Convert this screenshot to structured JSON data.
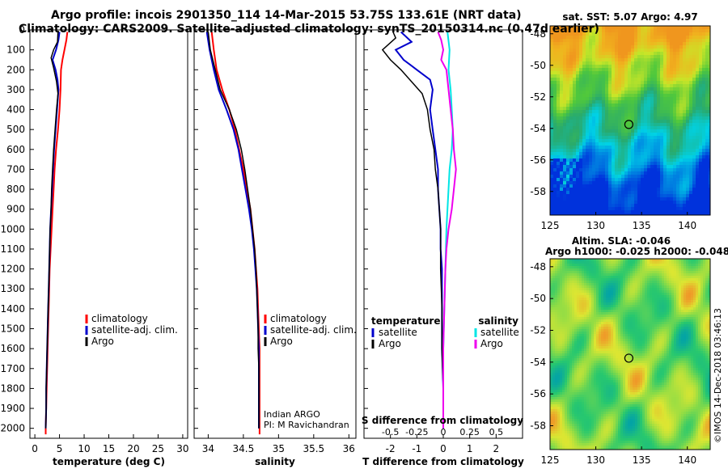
{
  "title_line1": "Argo profile: incois 2901350_114 14-Mar-2015 53.75S 133.61E (NRT data)",
  "title_line2": "Climatology: CARS2009. Satellite-adjusted climatology: synTS_20150314.nc (0.47d earlier)",
  "credit": "©IMOS 14-Dec-2018 03:46:13",
  "colors": {
    "climatology": "#ff0000",
    "satellite": "#0000cc",
    "argo": "#000000",
    "sal_satellite": "#00e5e5",
    "sal_argo": "#ee00ee"
  },
  "chart_data": [
    {
      "type": "line",
      "xlabel": "temperature (deg C)",
      "ylabel": "",
      "xlim": [
        -1,
        31
      ],
      "ylim": [
        2050,
        0
      ],
      "xticks": [
        "0",
        "5",
        "10",
        "15",
        "20",
        "25",
        "30"
      ],
      "yticks": [
        "0",
        "100",
        "200",
        "300",
        "400",
        "500",
        "600",
        "700",
        "800",
        "900",
        "1000",
        "1100",
        "1200",
        "1300",
        "1400",
        "1500",
        "1600",
        "1700",
        "1800",
        "1900",
        "2000"
      ],
      "legend": [
        "climatology",
        "satellite-adj. clim.",
        "Argo"
      ],
      "legend_position": "lower-right",
      "series": [
        {
          "name": "climatology",
          "points": [
            [
              6.6,
              10
            ],
            [
              6.4,
              50
            ],
            [
              6.0,
              100
            ],
            [
              5.6,
              150
            ],
            [
              5.3,
              200
            ],
            [
              5.2,
              300
            ],
            [
              5.0,
              400
            ],
            [
              4.7,
              500
            ],
            [
              4.3,
              600
            ],
            [
              4.0,
              700
            ],
            [
              3.8,
              800
            ],
            [
              3.6,
              900
            ],
            [
              3.4,
              1000
            ],
            [
              3.2,
              1100
            ],
            [
              3.0,
              1200
            ],
            [
              2.9,
              1300
            ],
            [
              2.8,
              1400
            ],
            [
              2.7,
              1500
            ],
            [
              2.6,
              1600
            ],
            [
              2.5,
              1700
            ],
            [
              2.4,
              1800
            ],
            [
              2.3,
              1900
            ],
            [
              2.2,
              2000
            ],
            [
              2.2,
              2030
            ]
          ]
        },
        {
          "name": "satellite-adj. clim.",
          "points": [
            [
              5.0,
              10
            ],
            [
              4.8,
              50
            ],
            [
              4.3,
              100
            ],
            [
              3.6,
              150
            ],
            [
              4.2,
              200
            ],
            [
              4.6,
              250
            ],
            [
              4.8,
              300
            ],
            [
              4.5,
              400
            ],
            [
              4.2,
              500
            ],
            [
              3.9,
              600
            ],
            [
              3.7,
              700
            ],
            [
              3.5,
              800
            ],
            [
              3.3,
              900
            ],
            [
              3.1,
              1000
            ],
            [
              3.0,
              1100
            ],
            [
              2.9,
              1200
            ],
            [
              2.8,
              1300
            ],
            [
              2.7,
              1400
            ],
            [
              2.6,
              1500
            ],
            [
              2.5,
              1600
            ],
            [
              2.4,
              1700
            ],
            [
              2.3,
              1800
            ],
            [
              2.3,
              1900
            ],
            [
              2.2,
              2000
            ]
          ]
        },
        {
          "name": "Argo",
          "points": [
            [
              4.7,
              10
            ],
            [
              4.6,
              60
            ],
            [
              3.8,
              100
            ],
            [
              3.3,
              140
            ],
            [
              3.8,
              190
            ],
            [
              4.4,
              260
            ],
            [
              4.7,
              320
            ],
            [
              4.4,
              400
            ],
            [
              4.1,
              500
            ],
            [
              3.8,
              600
            ],
            [
              3.6,
              700
            ],
            [
              3.4,
              800
            ],
            [
              3.3,
              900
            ],
            [
              3.1,
              1000
            ],
            [
              3.0,
              1100
            ],
            [
              2.9,
              1200
            ],
            [
              2.8,
              1300
            ],
            [
              2.7,
              1400
            ],
            [
              2.6,
              1500
            ],
            [
              2.5,
              1600
            ],
            [
              2.4,
              1700
            ],
            [
              2.3,
              1800
            ],
            [
              2.3,
              1900
            ],
            [
              2.2,
              2000
            ]
          ]
        }
      ]
    },
    {
      "type": "line",
      "xlabel": "salinity",
      "xlim": [
        33.8,
        36.1
      ],
      "ylim": [
        2050,
        0
      ],
      "xticks": [
        "34",
        "34.5",
        "35",
        "35.5",
        "36"
      ],
      "legend": [
        "climatology",
        "satellite-adj. clim.",
        "Argo"
      ],
      "legend_position": "lower-right",
      "annotation": [
        "Indian ARGO",
        "PI: M Ravichandran"
      ],
      "series": [
        {
          "name": "climatology",
          "points": [
            [
              34.05,
              10
            ],
            [
              34.08,
              100
            ],
            [
              34.12,
              200
            ],
            [
              34.2,
              300
            ],
            [
              34.3,
              400
            ],
            [
              34.38,
              500
            ],
            [
              34.44,
              600
            ],
            [
              34.5,
              700
            ],
            [
              34.55,
              800
            ],
            [
              34.6,
              900
            ],
            [
              34.63,
              1000
            ],
            [
              34.66,
              1100
            ],
            [
              34.68,
              1200
            ],
            [
              34.7,
              1300
            ],
            [
              34.71,
              1400
            ],
            [
              34.72,
              1500
            ],
            [
              34.73,
              1600
            ],
            [
              34.73,
              1700
            ],
            [
              34.73,
              1800
            ],
            [
              34.73,
              1900
            ],
            [
              34.73,
              2030
            ]
          ]
        },
        {
          "name": "satellite-adj. clim.",
          "points": [
            [
              33.98,
              10
            ],
            [
              34.02,
              100
            ],
            [
              34.08,
              200
            ],
            [
              34.15,
              300
            ],
            [
              34.26,
              400
            ],
            [
              34.36,
              500
            ],
            [
              34.43,
              600
            ],
            [
              34.48,
              700
            ],
            [
              34.53,
              800
            ],
            [
              34.58,
              900
            ],
            [
              34.62,
              1000
            ],
            [
              34.65,
              1100
            ],
            [
              34.67,
              1200
            ],
            [
              34.69,
              1300
            ],
            [
              34.7,
              1400
            ],
            [
              34.71,
              1500
            ],
            [
              34.72,
              1600
            ],
            [
              34.72,
              1700
            ],
            [
              34.72,
              1800
            ],
            [
              34.72,
              1900
            ],
            [
              34.72,
              2000
            ]
          ]
        },
        {
          "name": "Argo",
          "points": [
            [
              34.0,
              10
            ],
            [
              34.03,
              100
            ],
            [
              34.1,
              200
            ],
            [
              34.17,
              300
            ],
            [
              34.3,
              400
            ],
            [
              34.4,
              500
            ],
            [
              34.47,
              600
            ],
            [
              34.52,
              700
            ],
            [
              34.56,
              800
            ],
            [
              34.6,
              900
            ],
            [
              34.63,
              1000
            ],
            [
              34.66,
              1100
            ],
            [
              34.68,
              1200
            ],
            [
              34.69,
              1300
            ],
            [
              34.7,
              1400
            ],
            [
              34.71,
              1500
            ],
            [
              34.71,
              1600
            ],
            [
              34.72,
              1700
            ],
            [
              34.72,
              1800
            ],
            [
              34.72,
              1900
            ],
            [
              34.72,
              2000
            ]
          ]
        }
      ]
    },
    {
      "type": "line",
      "xlabel": "T difference from climatology",
      "xlabel2": "S difference from climatology",
      "xlim": [
        -3,
        3
      ],
      "ylim": [
        2050,
        0
      ],
      "xticks": [
        "-2",
        "-1",
        "0",
        "1",
        "2"
      ],
      "xticks_s": [
        "-0.5",
        "-0.25",
        "0",
        "0.25",
        "0.5"
      ],
      "legend_left_title": "temperature",
      "legend_right_title": "salinity",
      "legend_left": [
        "satellite",
        "Argo"
      ],
      "legend_right": [
        "satellite",
        "Argo"
      ],
      "legend_position": "lower",
      "series": [
        {
          "name": "satellite",
          "points": [
            [
              -1.6,
              10
            ],
            [
              -1.2,
              60
            ],
            [
              -1.8,
              100
            ],
            [
              -1.5,
              150
            ],
            [
              -1.0,
              200
            ],
            [
              -0.5,
              250
            ],
            [
              -0.4,
              300
            ],
            [
              -0.5,
              400
            ],
            [
              -0.4,
              500
            ],
            [
              -0.3,
              600
            ],
            [
              -0.2,
              700
            ],
            [
              -0.2,
              800
            ],
            [
              -0.15,
              900
            ],
            [
              -0.1,
              1000
            ],
            [
              -0.1,
              1100
            ],
            [
              -0.05,
              1200
            ],
            [
              -0.05,
              1400
            ],
            [
              -0.05,
              1600
            ],
            [
              0,
              1800
            ],
            [
              0,
              2000
            ]
          ]
        },
        {
          "name": "Argo",
          "points": [
            [
              -1.9,
              10
            ],
            [
              -1.8,
              40
            ],
            [
              -2.3,
              100
            ],
            [
              -2.0,
              150
            ],
            [
              -1.6,
              200
            ],
            [
              -1.2,
              260
            ],
            [
              -0.8,
              320
            ],
            [
              -0.6,
              400
            ],
            [
              -0.5,
              500
            ],
            [
              -0.35,
              600
            ],
            [
              -0.3,
              700
            ],
            [
              -0.2,
              800
            ],
            [
              -0.15,
              900
            ],
            [
              -0.1,
              1000
            ],
            [
              -0.1,
              1200
            ],
            [
              -0.05,
              1400
            ],
            [
              -0.05,
              1600
            ],
            [
              0,
              1800
            ],
            [
              0,
              2000
            ]
          ]
        },
        {
          "name": "satellite",
          "points": [
            [
              0.04,
              10
            ],
            [
              0.06,
              100
            ],
            [
              0.05,
              200
            ],
            [
              0.07,
              300
            ],
            [
              0.08,
              400
            ],
            [
              0.09,
              500
            ],
            [
              0.08,
              600
            ],
            [
              0.06,
              700
            ],
            [
              0.05,
              800
            ],
            [
              0.04,
              900
            ],
            [
              0.03,
              1000
            ],
            [
              0.02,
              1200
            ],
            [
              0.01,
              1400
            ],
            [
              0.0,
              1600
            ],
            [
              0.0,
              2000
            ]
          ]
        },
        {
          "name": "Argo",
          "points": [
            [
              -0.05,
              10
            ],
            [
              -0.02,
              50
            ],
            [
              0.0,
              100
            ],
            [
              -0.02,
              150
            ],
            [
              0.03,
              200
            ],
            [
              0.05,
              300
            ],
            [
              0.07,
              400
            ],
            [
              0.09,
              500
            ],
            [
              0.1,
              600
            ],
            [
              0.12,
              700
            ],
            [
              0.1,
              800
            ],
            [
              0.08,
              900
            ],
            [
              0.05,
              1000
            ],
            [
              0.03,
              1100
            ],
            [
              0.02,
              1200
            ],
            [
              0.01,
              1400
            ],
            [
              0.0,
              1600
            ],
            [
              0.0,
              2000
            ]
          ]
        }
      ]
    },
    {
      "type": "heatmap",
      "title": "sat. SST: 5.07 Argo: 4.97",
      "xticks": [
        "125",
        "130",
        "135",
        "140"
      ],
      "yticks": [
        "-48",
        "-50",
        "-52",
        "-54",
        "-56",
        "-58"
      ],
      "xlim": [
        125,
        142.5
      ],
      "ylim": [
        -59.5,
        -47.5
      ],
      "marker": [
        133.61,
        -53.75
      ]
    },
    {
      "type": "heatmap",
      "title": "Altim. SLA: -0.046",
      "subtitle": "Argo h1000: -0.025 h2000: -0.048",
      "xticks": [
        "125",
        "130",
        "135",
        "140"
      ],
      "yticks": [
        "-48",
        "-50",
        "-52",
        "-54",
        "-56",
        "-58"
      ],
      "xlim": [
        125,
        142.5
      ],
      "ylim": [
        -59.5,
        -47.5
      ],
      "marker": [
        133.61,
        -53.75
      ]
    }
  ]
}
